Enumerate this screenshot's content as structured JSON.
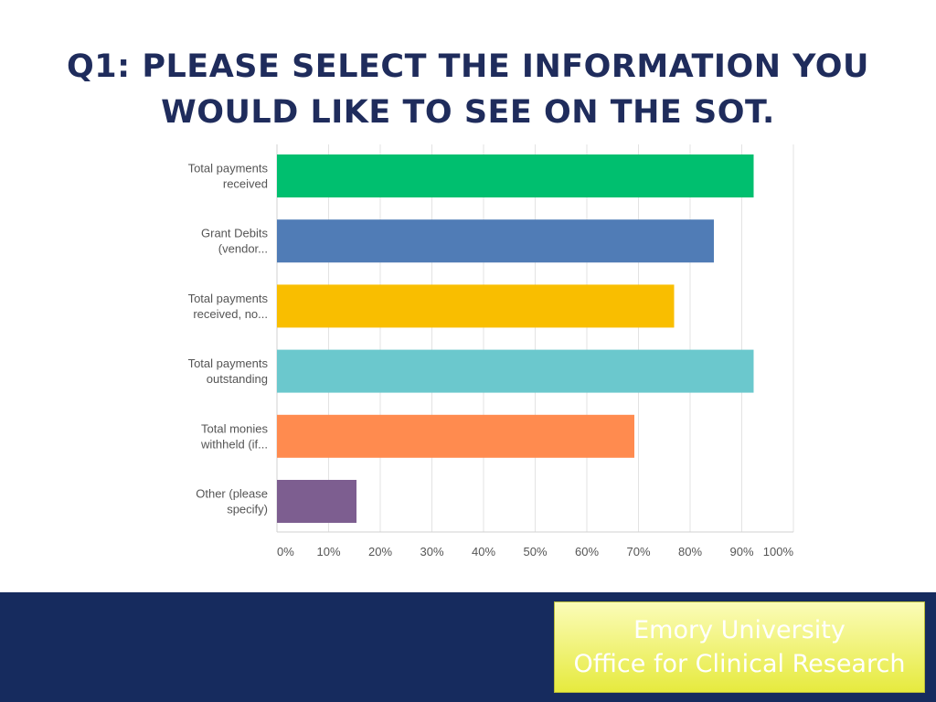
{
  "slide": {
    "title_line1": "Q1: PLEASE SELECT THE INFORMATION YOU",
    "title_line2": "WOULD LIKE TO SEE ON THE SOT."
  },
  "footer": {
    "org_line1": "Emory University",
    "org_line2": "Office for Clinical Research",
    "band_color": "#162b5e"
  },
  "chart_data": {
    "type": "bar",
    "orientation": "horizontal",
    "categories": [
      [
        "Total payments",
        "received"
      ],
      [
        "Grant Debits",
        "(vendor..."
      ],
      [
        "Total payments",
        "received, no..."
      ],
      [
        "Total payments",
        "outstanding"
      ],
      [
        "Total monies",
        "withheld (if..."
      ],
      [
        "Other (please",
        "specify)"
      ]
    ],
    "values": [
      92.3,
      84.6,
      76.9,
      92.3,
      69.2,
      15.4
    ],
    "colors": [
      "#00bf6f",
      "#507cb6",
      "#f9be00",
      "#6bc8cd",
      "#ff8b4f",
      "#7d5e90"
    ],
    "xlim": [
      0,
      100
    ],
    "xticks": [
      "0%",
      "10%",
      "20%",
      "30%",
      "40%",
      "50%",
      "60%",
      "70%",
      "80%",
      "90%",
      "100%"
    ],
    "grid": true
  }
}
